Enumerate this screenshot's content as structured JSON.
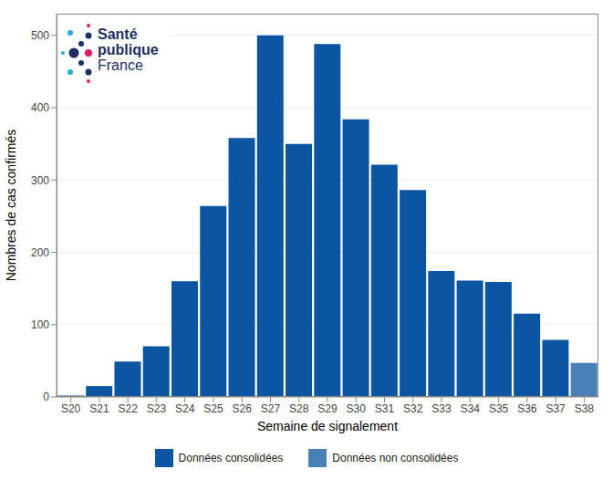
{
  "chart_data": {
    "type": "bar",
    "stacked": true,
    "categories": [
      "S20",
      "S21",
      "S22",
      "S23",
      "S24",
      "S25",
      "S26",
      "S27",
      "S28",
      "S29",
      "S30",
      "S31",
      "S32",
      "S33",
      "S34",
      "S35",
      "S36",
      "S37",
      "S38"
    ],
    "series": [
      {
        "name": "Données consolidées",
        "color": "#0b55a3",
        "values": [
          2,
          15,
          49,
          70,
          160,
          264,
          358,
          500,
          350,
          488,
          384,
          321,
          286,
          174,
          161,
          159,
          115,
          79,
          null
        ]
      },
      {
        "name": "Données non consolidées",
        "color": "#4a80b5",
        "values": [
          null,
          null,
          null,
          null,
          null,
          null,
          null,
          null,
          null,
          null,
          null,
          null,
          null,
          null,
          null,
          null,
          null,
          null,
          47
        ]
      }
    ],
    "xlabel": "Semaine de signalement",
    "ylabel": "Nombres de cas confirmés",
    "ylim": [
      0,
      530
    ],
    "yticks": [
      0,
      100,
      200,
      300,
      400,
      500
    ],
    "grid": true,
    "legend": "bottom",
    "annotations": [
      "Santé",
      "publique",
      "France"
    ]
  }
}
